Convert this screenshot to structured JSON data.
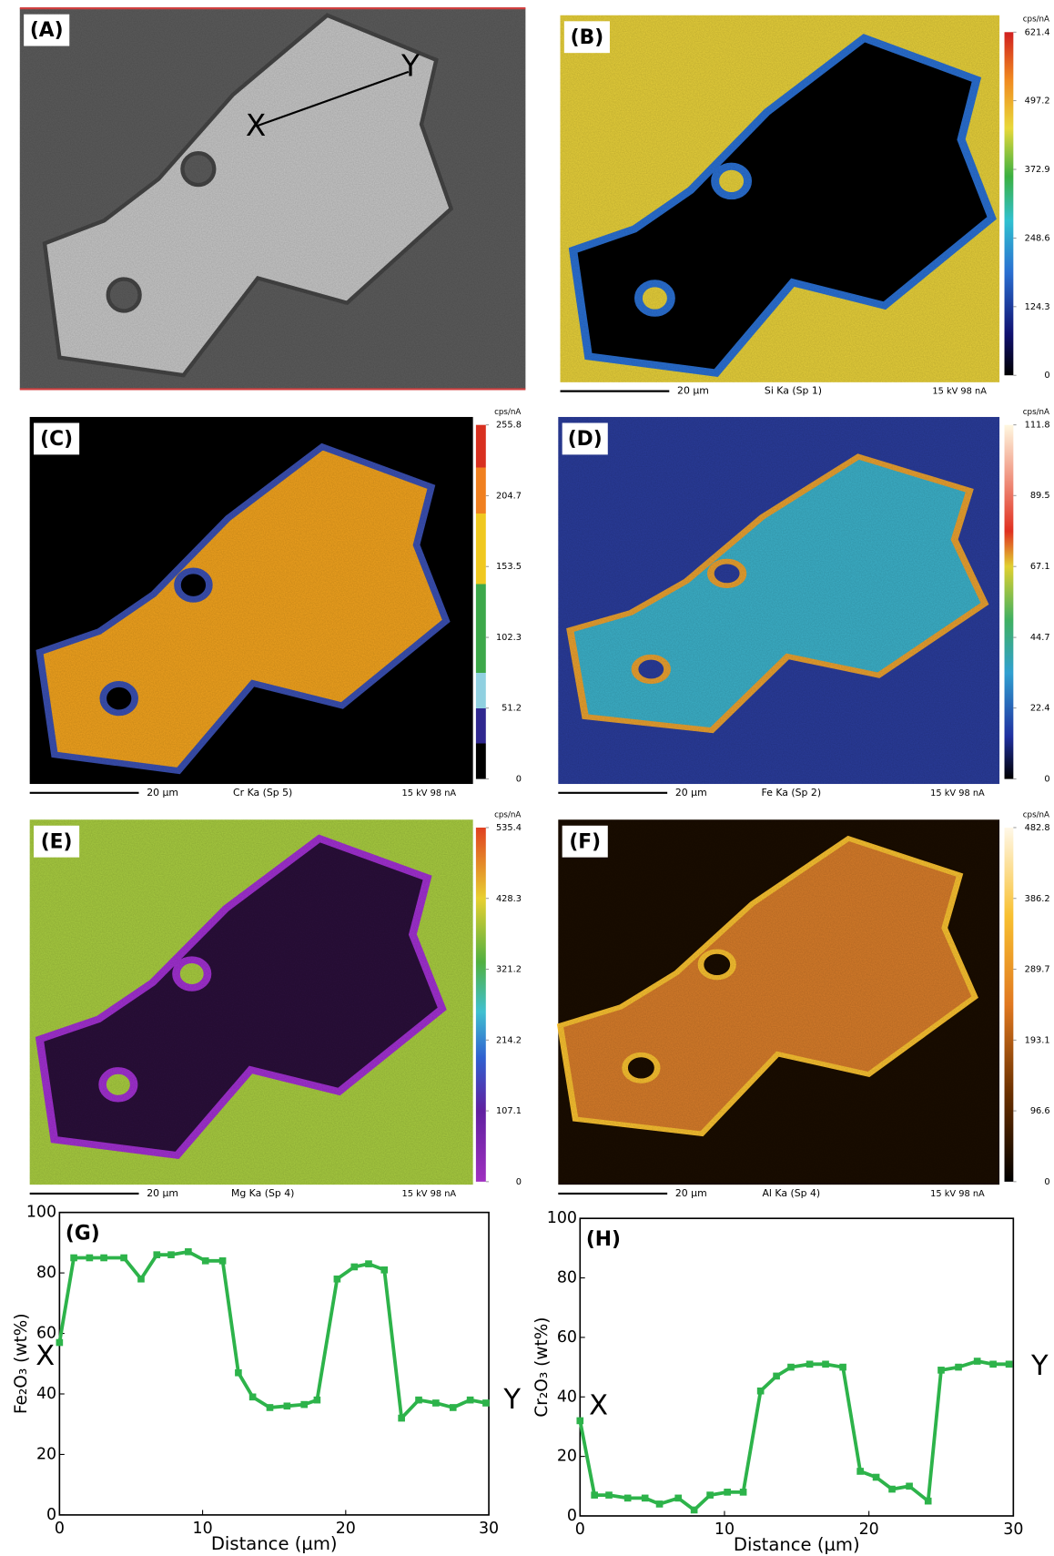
{
  "panels": [
    {
      "label": "(A)",
      "annotations": [
        "X",
        "Y"
      ]
    },
    {
      "label": "(B)",
      "unit": "cps/nA",
      "colorbar": {
        "lim": [
          0,
          621.4
        ],
        "ticks": [
          0,
          124.3,
          248.6,
          372.9,
          497.2,
          621.4
        ]
      },
      "scale": "20 µm",
      "element": "Si Ka (Sp 1)",
      "conditions": "15 kV 98 nA"
    },
    {
      "label": "(C)",
      "unit": "cps/nA",
      "colorbar": {
        "lim": [
          0,
          255.8
        ],
        "ticks": [
          0,
          51.2,
          102.3,
          153.5,
          204.7,
          255.8
        ]
      },
      "scale": "20 µm",
      "element": "Cr Ka (Sp 5)",
      "conditions": "15 kV 98 nA"
    },
    {
      "label": "(D)",
      "unit": "cps/nA",
      "colorbar": {
        "lim": [
          0,
          111.8
        ],
        "ticks": [
          0,
          22.4,
          44.7,
          67.1,
          89.5,
          111.8
        ]
      },
      "scale": "20 µm",
      "element": "Fe Ka (Sp 2)",
      "conditions": "15 kV 98 nA"
    },
    {
      "label": "(E)",
      "unit": "cps/nA",
      "colorbar": {
        "lim": [
          0,
          535.4
        ],
        "ticks": [
          0,
          107.1,
          214.2,
          321.2,
          428.3,
          535.4
        ]
      },
      "scale": "20 µm",
      "element": "Mg Ka (Sp 4)",
      "conditions": "15 kV 98 nA"
    },
    {
      "label": "(F)",
      "unit": "cps/nA",
      "colorbar": {
        "lim": [
          0,
          482.8
        ],
        "ticks": [
          0,
          96.6,
          193.1,
          289.7,
          386.2,
          482.8
        ]
      },
      "scale": "20 µm",
      "element": "Al Ka (Sp 4)",
      "conditions": "15 kV 98 nA"
    }
  ],
  "chart_data": [
    {
      "type": "line",
      "label": "(G)",
      "x_label": "Distance (µm)",
      "y_label": "Fe₂O₃ (wt%)",
      "start_label": "X",
      "end_label": "Y",
      "x": [
        0,
        1,
        2.1,
        3.1,
        4.5,
        5.7,
        6.8,
        7.8,
        9,
        10.2,
        11.4,
        12.5,
        13.5,
        14.7,
        15.9,
        17.1,
        18,
        19.4,
        20.6,
        21.6,
        22.7,
        23.9,
        25.1,
        26.3,
        27.5,
        28.7,
        29.8
      ],
      "series": [
        {
          "color": "#2db34a",
          "values": [
            57,
            85,
            85,
            85,
            85,
            78,
            86,
            86,
            87,
            84,
            84,
            47,
            39,
            35.5,
            36,
            36.5,
            38,
            78,
            82,
            83,
            81,
            32,
            38,
            37,
            35.5,
            38,
            37
          ]
        }
      ],
      "xlim": [
        0,
        30
      ],
      "ylim": [
        0,
        100
      ],
      "xticks": [
        0,
        10,
        20,
        30
      ],
      "yticks": [
        0,
        20,
        40,
        60,
        80,
        100
      ]
    },
    {
      "type": "line",
      "label": "(H)",
      "x_label": "Distance (µm)",
      "y_label": "Cr₂O₃ (wt%)",
      "start_label": "X",
      "end_label": "Y",
      "x": [
        0,
        1,
        2,
        3.3,
        4.5,
        5.5,
        6.8,
        7.9,
        9,
        10.2,
        11.3,
        12.5,
        13.6,
        14.6,
        15.9,
        17,
        18.2,
        19.4,
        20.5,
        21.6,
        22.8,
        24.1,
        25,
        26.2,
        27.5,
        28.6,
        29.7
      ],
      "series": [
        {
          "color": "#2db34a",
          "values": [
            32,
            7,
            7,
            6,
            6,
            4,
            6,
            2,
            7,
            8,
            8,
            42,
            47,
            50,
            51,
            51,
            50,
            15,
            13,
            9,
            10,
            5,
            49,
            50,
            52,
            51,
            51
          ]
        }
      ],
      "xlim": [
        0,
        30
      ],
      "ylim": [
        0,
        100
      ],
      "xticks": [
        0,
        10,
        20,
        30
      ],
      "yticks": [
        0,
        20,
        40,
        60,
        80,
        100
      ]
    }
  ]
}
